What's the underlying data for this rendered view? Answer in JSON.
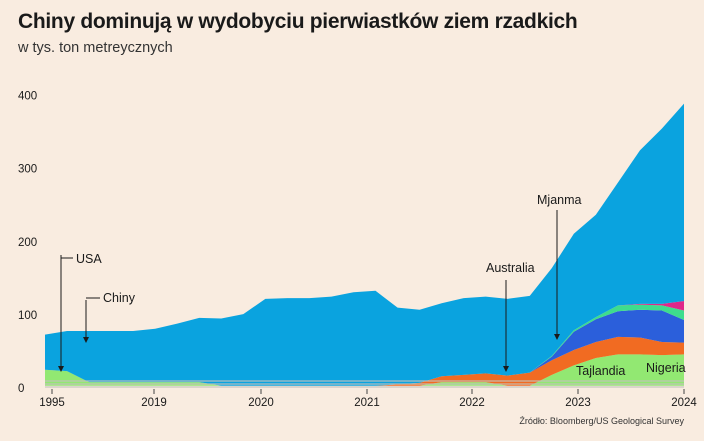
{
  "chart_data": {
    "type": "area",
    "title": "Chiny dominują w wydobyciu pierwiastków ziem rzadkich",
    "subtitle": "w tys. ton metreycznych",
    "source": "Źródło: Bloomberg/US Geological Survey",
    "x_tick_labels": [
      "1995",
      "2019",
      "2020",
      "2021",
      "2022",
      "2023",
      "2024"
    ],
    "y_tick_labels": [
      "0",
      "100",
      "200",
      "300",
      "400"
    ],
    "ylim": [
      0,
      400
    ],
    "grid": false,
    "colors": {
      "Chiny": "#0aa3df",
      "USA": "#92e872",
      "Australia": "#f16b22",
      "Mjanma": "#2b5fdb",
      "Tajlandia": "#3edd8d",
      "Nigeria": "#e0278a",
      "others": "#c4c1bd"
    },
    "series": [
      {
        "name": "Chiny",
        "x": [
          1995,
          1996,
          1997,
          1998,
          1999,
          2000,
          2001,
          2002,
          2003,
          2004,
          2005,
          2006,
          2007,
          2008,
          2009,
          2010,
          2011,
          2012,
          2013,
          2014,
          2015,
          2016,
          2017,
          2018,
          2019,
          2020,
          2021,
          2022,
          2023,
          2024
        ],
        "values": [
          48,
          55,
          70,
          70,
          70,
          73,
          80,
          88,
          92,
          98,
          119,
          120,
          120,
          122,
          128,
          130,
          105,
          100,
          100,
          105,
          105,
          105,
          105,
          120,
          132,
          140,
          168,
          210,
          240,
          270
        ]
      },
      {
        "name": "USA",
        "x": [
          1995,
          1996,
          1997,
          1998,
          1999,
          2000,
          2001,
          2002,
          2003,
          2004,
          2005,
          2006,
          2007,
          2008,
          2009,
          2010,
          2011,
          2012,
          2013,
          2014,
          2015,
          2016,
          2017,
          2018,
          2019,
          2020,
          2021,
          2022,
          2023,
          2024
        ],
        "values": [
          22,
          20,
          5,
          5,
          5,
          5,
          5,
          5,
          0,
          0,
          0,
          0,
          0,
          0,
          0,
          0,
          0,
          0,
          5,
          5,
          5,
          0,
          0,
          15,
          28,
          38,
          43,
          43,
          42,
          43
        ]
      },
      {
        "name": "Australia",
        "x": [
          1995,
          1996,
          1997,
          1998,
          1999,
          2000,
          2001,
          2002,
          2003,
          2004,
          2005,
          2006,
          2007,
          2008,
          2009,
          2010,
          2011,
          2012,
          2013,
          2014,
          2015,
          2016,
          2017,
          2018,
          2019,
          2020,
          2021,
          2022,
          2023,
          2024
        ],
        "values": [
          0,
          0,
          0,
          0,
          0,
          0,
          0,
          0,
          0,
          0,
          0,
          0,
          0,
          0,
          0,
          0,
          2,
          4,
          8,
          10,
          12,
          14,
          18,
          20,
          21,
          22,
          24,
          23,
          18,
          16
        ]
      },
      {
        "name": "Mjanma",
        "x": [
          1995,
          1996,
          1997,
          1998,
          1999,
          2000,
          2001,
          2002,
          2003,
          2004,
          2005,
          2006,
          2007,
          2008,
          2009,
          2010,
          2011,
          2012,
          2013,
          2014,
          2015,
          2016,
          2017,
          2018,
          2019,
          2020,
          2021,
          2022,
          2023,
          2024
        ],
        "values": [
          0,
          0,
          0,
          0,
          0,
          0,
          0,
          0,
          0,
          0,
          0,
          0,
          0,
          0,
          0,
          0,
          0,
          0,
          0,
          0,
          0,
          0,
          0,
          5,
          25,
          31,
          35,
          38,
          43,
          31
        ]
      },
      {
        "name": "Tajlandia",
        "x": [
          1995,
          1996,
          1997,
          1998,
          1999,
          2000,
          2001,
          2002,
          2003,
          2004,
          2005,
          2006,
          2007,
          2008,
          2009,
          2010,
          2011,
          2012,
          2013,
          2014,
          2015,
          2016,
          2017,
          2018,
          2019,
          2020,
          2021,
          2022,
          2023,
          2024
        ],
        "values": [
          0,
          0,
          0,
          0,
          0,
          0,
          0,
          0,
          0,
          0,
          0,
          0,
          0,
          0,
          0,
          0,
          0,
          0,
          0,
          0,
          0,
          0,
          0,
          1,
          2,
          3,
          8,
          7,
          7,
          13
        ]
      },
      {
        "name": "Nigeria",
        "x": [
          1995,
          1996,
          1997,
          1998,
          1999,
          2000,
          2001,
          2002,
          2003,
          2004,
          2005,
          2006,
          2007,
          2008,
          2009,
          2010,
          2011,
          2012,
          2013,
          2014,
          2015,
          2016,
          2017,
          2018,
          2019,
          2020,
          2021,
          2022,
          2023,
          2024
        ],
        "values": [
          0,
          0,
          0,
          0,
          0,
          0,
          0,
          0,
          0,
          0,
          0,
          0,
          0,
          0,
          0,
          0,
          0,
          0,
          0,
          0,
          0,
          0,
          0,
          0,
          0,
          0,
          0,
          1,
          2,
          13
        ]
      }
    ],
    "annotations": [
      {
        "label": "USA",
        "series": "USA"
      },
      {
        "label": "Chiny",
        "series": "Chiny"
      },
      {
        "label": "Australia",
        "series": "Australia"
      },
      {
        "label": "Mjanma",
        "series": "Mjanma"
      },
      {
        "label": "Tajlandia",
        "series": "Tajlandia"
      },
      {
        "label": "Nigeria",
        "series": "Nigeria"
      }
    ]
  }
}
